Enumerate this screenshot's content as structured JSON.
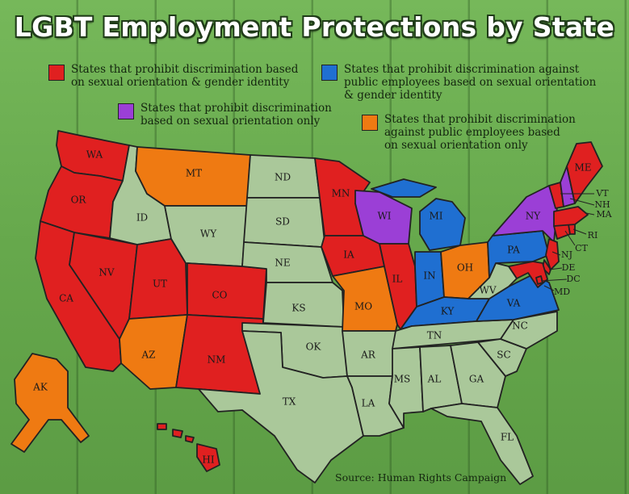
{
  "title": "LGBT Employment Protections by State",
  "colors": {
    "red": "#e02020",
    "blue": "#1f6fd1",
    "purple": "#9b3fd6",
    "orange": "#ef7a12",
    "none": "#aac89a",
    "background": "#6aa84f"
  },
  "legend": [
    {
      "key": "red",
      "text_line1": "States that prohibit discrimination based",
      "text_line2": "on sexual orientation & gender identity",
      "text_line3": ""
    },
    {
      "key": "blue",
      "text_line1": "States that prohibit discrimination against",
      "text_line2": "public employees based on sexual orientation",
      "text_line3": "& gender identity"
    },
    {
      "key": "purple",
      "text_line1": "States that prohibit discrimination",
      "text_line2": "based on sexual orientation only",
      "text_line3": ""
    },
    {
      "key": "orange",
      "text_line1": "States that prohibit discrimination",
      "text_line2": "against public employees based",
      "text_line3": "on sexual orientation only"
    }
  ],
  "states": [
    {
      "abbr": "WA",
      "category": "red"
    },
    {
      "abbr": "OR",
      "category": "red"
    },
    {
      "abbr": "CA",
      "category": "red"
    },
    {
      "abbr": "NV",
      "category": "red"
    },
    {
      "abbr": "ID",
      "category": "none"
    },
    {
      "abbr": "MT",
      "category": "orange"
    },
    {
      "abbr": "WY",
      "category": "none"
    },
    {
      "abbr": "UT",
      "category": "red"
    },
    {
      "abbr": "CO",
      "category": "red"
    },
    {
      "abbr": "AZ",
      "category": "orange"
    },
    {
      "abbr": "NM",
      "category": "red"
    },
    {
      "abbr": "ND",
      "category": "none"
    },
    {
      "abbr": "SD",
      "category": "none"
    },
    {
      "abbr": "NE",
      "category": "none"
    },
    {
      "abbr": "KS",
      "category": "none"
    },
    {
      "abbr": "OK",
      "category": "none"
    },
    {
      "abbr": "TX",
      "category": "none"
    },
    {
      "abbr": "MN",
      "category": "red"
    },
    {
      "abbr": "IA",
      "category": "red"
    },
    {
      "abbr": "MO",
      "category": "orange"
    },
    {
      "abbr": "AR",
      "category": "none"
    },
    {
      "abbr": "LA",
      "category": "none"
    },
    {
      "abbr": "WI",
      "category": "purple"
    },
    {
      "abbr": "IL",
      "category": "red"
    },
    {
      "abbr": "MI",
      "category": "blue"
    },
    {
      "abbr": "IN",
      "category": "blue"
    },
    {
      "abbr": "OH",
      "category": "orange"
    },
    {
      "abbr": "KY",
      "category": "blue"
    },
    {
      "abbr": "TN",
      "category": "none"
    },
    {
      "abbr": "MS",
      "category": "none"
    },
    {
      "abbr": "AL",
      "category": "none"
    },
    {
      "abbr": "GA",
      "category": "none"
    },
    {
      "abbr": "FL",
      "category": "none"
    },
    {
      "abbr": "SC",
      "category": "none"
    },
    {
      "abbr": "NC",
      "category": "none"
    },
    {
      "abbr": "VA",
      "category": "blue"
    },
    {
      "abbr": "WV",
      "category": "none"
    },
    {
      "abbr": "PA",
      "category": "blue"
    },
    {
      "abbr": "NY",
      "category": "purple"
    },
    {
      "abbr": "NJ",
      "category": "red"
    },
    {
      "abbr": "DE",
      "category": "red"
    },
    {
      "abbr": "MD",
      "category": "red"
    },
    {
      "abbr": "DC",
      "category": "red"
    },
    {
      "abbr": "CT",
      "category": "red"
    },
    {
      "abbr": "RI",
      "category": "red"
    },
    {
      "abbr": "MA",
      "category": "red"
    },
    {
      "abbr": "VT",
      "category": "red"
    },
    {
      "abbr": "NH",
      "category": "purple"
    },
    {
      "abbr": "ME",
      "category": "red"
    },
    {
      "abbr": "AK",
      "category": "orange"
    },
    {
      "abbr": "HI",
      "category": "red"
    }
  ],
  "source": "Source: Human Rights Campaign"
}
